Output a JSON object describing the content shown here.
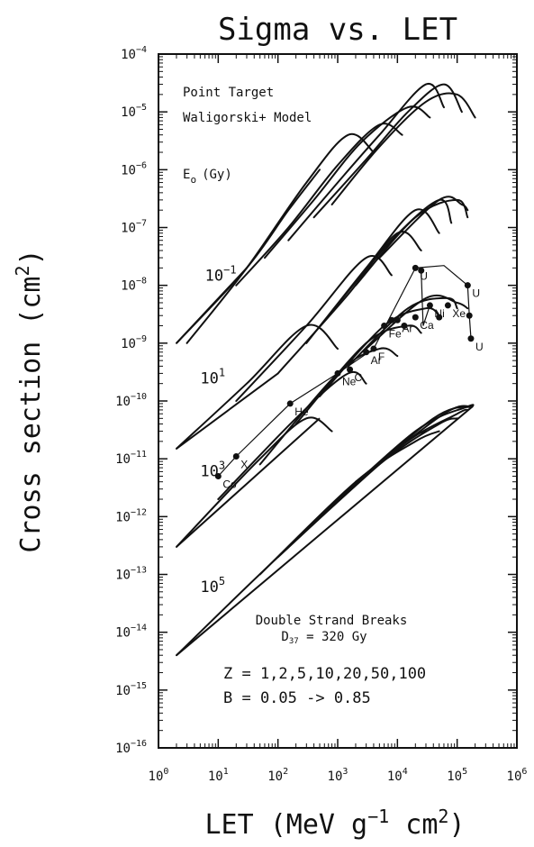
{
  "chart_data": {
    "type": "line",
    "title": "Sigma vs. LET",
    "xlabel": "LET (MeV g⁻¹ cm²)",
    "ylabel": "Cross section (cm²)",
    "x_scale": "log",
    "y_scale": "log",
    "xlim": [
      1,
      1000000
    ],
    "ylim": [
      1e-16,
      0.0001
    ],
    "x_ticks": [
      {
        "value": 1,
        "base": "10",
        "exp": "0"
      },
      {
        "value": 10,
        "base": "10",
        "exp": "1"
      },
      {
        "value": 100,
        "base": "10",
        "exp": "2"
      },
      {
        "value": 1000,
        "base": "10",
        "exp": "3"
      },
      {
        "value": 10000,
        "base": "10",
        "exp": "4"
      },
      {
        "value": 100000,
        "base": "10",
        "exp": "5"
      },
      {
        "value": 1000000,
        "base": "10",
        "exp": "6"
      }
    ],
    "y_ticks": [
      {
        "value": 0.0001,
        "base": "10",
        "exp": "−4"
      },
      {
        "value": 1e-05,
        "base": "10",
        "exp": "−5"
      },
      {
        "value": 1e-06,
        "base": "10",
        "exp": "−6"
      },
      {
        "value": 1e-07,
        "base": "10",
        "exp": "−7"
      },
      {
        "value": 1e-08,
        "base": "10",
        "exp": "−8"
      },
      {
        "value": 1e-09,
        "base": "10",
        "exp": "−9"
      },
      {
        "value": 1e-10,
        "base": "10",
        "exp": "−10"
      },
      {
        "value": 1e-11,
        "base": "10",
        "exp": "−11"
      },
      {
        "value": 1e-12,
        "base": "10",
        "exp": "−12"
      },
      {
        "value": 1e-13,
        "base": "10",
        "exp": "−13"
      },
      {
        "value": 1e-14,
        "base": "10",
        "exp": "−14"
      },
      {
        "value": 1e-15,
        "base": "10",
        "exp": "−15"
      },
      {
        "value": 1e-16,
        "base": "10",
        "exp": "−16"
      }
    ],
    "annotations": {
      "model_line1": "Point Target",
      "model_line2": "Waligorski+ Model",
      "e0_label": "E",
      "e0_sub": "o",
      "e0_unit": "(Gy)",
      "dsb_line1": "Double Strand Breaks",
      "dsb_d37_main": "D",
      "dsb_d37_sub": "37",
      "dsb_d37_rest": " = 320 Gy",
      "z_line": "Z = 1,2,5,10,20,50,100",
      "b_line": "B = 0.05 -> 0.85"
    },
    "dose_labels": [
      {
        "base": "10",
        "exp": "−1",
        "x": 6,
        "y": 1.2e-08
      },
      {
        "base": "10",
        "exp": "1",
        "x": 5,
        "y": 2e-10
      },
      {
        "base": "10",
        "exp": "3",
        "x": 5,
        "y": 5e-12
      },
      {
        "base": "10",
        "exp": "5",
        "x": 5,
        "y": 5e-14
      }
    ],
    "dose_groups": [
      {
        "E0": 0.1,
        "baseline": [
          [
            2,
            1e-09
          ],
          [
            30,
            2e-08
          ]
        ],
        "curves": [
          {
            "Z": 1,
            "points": [
              [
                2,
                1e-09
              ],
              [
                30,
                2e-08
              ],
              [
                150,
                2e-07
              ],
              [
                500,
                1e-06
              ]
            ]
          },
          {
            "Z": 2,
            "points": [
              [
                3,
                1e-09
              ],
              [
                30,
                2e-08
              ],
              [
                300,
                6e-07
              ],
              [
                1500,
                4e-06
              ],
              [
                4000,
                2e-06
              ]
            ]
          },
          {
            "Z": 5,
            "points": [
              [
                20,
                1e-08
              ],
              [
                150,
                1e-07
              ],
              [
                1000,
                1.2e-06
              ],
              [
                5000,
                6e-06
              ],
              [
                12000,
                4e-06
              ]
            ]
          },
          {
            "Z": 10,
            "points": [
              [
                60,
                3e-08
              ],
              [
                400,
                3e-07
              ],
              [
                2500,
                3e-06
              ],
              [
                15000,
                1.2e-05
              ],
              [
                35000,
                8e-06
              ]
            ]
          },
          {
            "Z": 20,
            "points": [
              [
                150,
                6e-08
              ],
              [
                1000,
                6e-07
              ],
              [
                5000,
                4e-06
              ],
              [
                30000,
                3e-05
              ],
              [
                60000,
                1.2e-05
              ]
            ]
          },
          {
            "Z": 50,
            "points": [
              [
                400,
                1.5e-07
              ],
              [
                3000,
                1.5e-06
              ],
              [
                15000,
                1e-05
              ],
              [
                60000,
                3e-05
              ],
              [
                120000,
                1e-05
              ]
            ]
          },
          {
            "Z": 100,
            "points": [
              [
                800,
                2.5e-07
              ],
              [
                5000,
                2.5e-06
              ],
              [
                30000,
                1.5e-05
              ],
              [
                100000,
                2e-05
              ],
              [
                200000,
                8e-06
              ]
            ]
          }
        ]
      },
      {
        "E0": 10,
        "baseline": [
          [
            2,
            1.5e-11
          ],
          [
            100,
            3e-10
          ]
        ],
        "curves": [
          {
            "Z": 1,
            "points": [
              [
                2,
                1.5e-11
              ],
              [
                30,
                2e-10
              ],
              [
                300,
                2e-09
              ],
              [
                1000,
                8e-10
              ]
            ]
          },
          {
            "Z": 2,
            "points": [
              [
                20,
                1e-10
              ],
              [
                300,
                2e-09
              ],
              [
                3000,
                3e-08
              ],
              [
                8000,
                1.5e-08
              ]
            ]
          },
          {
            "Z": 5,
            "points": [
              [
                100,
                3e-10
              ],
              [
                1500,
                7e-09
              ],
              [
                10000,
                8e-08
              ],
              [
                25000,
                4e-08
              ]
            ]
          },
          {
            "Z": 10,
            "points": [
              [
                300,
                1e-09
              ],
              [
                3000,
                2e-08
              ],
              [
                20000,
                2e-07
              ],
              [
                50000,
                8e-08
              ]
            ]
          },
          {
            "Z": 20,
            "points": [
              [
                700,
                3e-09
              ],
              [
                8000,
                6e-08
              ],
              [
                50000,
                3e-07
              ],
              [
                80000,
                1.2e-07
              ]
            ]
          },
          {
            "Z": 50,
            "points": [
              [
                2000,
                1e-08
              ],
              [
                20000,
                1.5e-07
              ],
              [
                100000,
                3e-07
              ],
              [
                150000,
                1.5e-07
              ]
            ]
          },
          {
            "Z": 100,
            "points": [
              [
                5000,
                3e-08
              ],
              [
                50000,
                3e-07
              ],
              [
                120000,
                2.5e-07
              ],
              [
                150000,
                2e-07
              ]
            ]
          }
        ]
      },
      {
        "E0": 1000,
        "baseline": [
          [
            2,
            3e-13
          ],
          [
            500,
            5e-11
          ]
        ],
        "curves": [
          {
            "Z": 1,
            "points": [
              [
                2,
                3e-13
              ],
              [
                50,
                1e-11
              ],
              [
                300,
                5e-11
              ],
              [
                800,
                3e-11
              ]
            ]
          },
          {
            "Z": 2,
            "points": [
              [
                10,
                2e-12
              ],
              [
                200,
                5e-11
              ],
              [
                1500,
                3e-10
              ],
              [
                3000,
                2e-10
              ]
            ]
          },
          {
            "Z": 5,
            "points": [
              [
                50,
                8e-12
              ],
              [
                1000,
                3e-10
              ],
              [
                5000,
                8e-10
              ],
              [
                10000,
                6e-10
              ]
            ]
          },
          {
            "Z": 10,
            "points": [
              [
                200,
                4e-11
              ],
              [
                3000,
                1e-09
              ],
              [
                15000,
                2e-09
              ],
              [
                25000,
                1.5e-09
              ]
            ]
          },
          {
            "Z": 20,
            "points": [
              [
                500,
                1.2e-10
              ],
              [
                6000,
                2e-09
              ],
              [
                30000,
                4e-09
              ],
              [
                50000,
                3e-09
              ]
            ]
          },
          {
            "Z": 50,
            "points": [
              [
                1500,
                4e-10
              ],
              [
                15000,
                4e-09
              ],
              [
                70000,
                6e-09
              ],
              [
                100000,
                4e-09
              ]
            ]
          },
          {
            "Z": 100,
            "points": [
              [
                3000,
                8e-10
              ],
              [
                30000,
                6e-09
              ],
              [
                100000,
                5e-09
              ],
              [
                150000,
                4e-09
              ]
            ]
          }
        ]
      },
      {
        "E0": 100000,
        "baseline": [
          [
            2,
            4e-15
          ],
          [
            180000,
            8e-11
          ]
        ],
        "curves": [
          {
            "Z": 1,
            "points": [
              [
                2,
                4e-15
              ],
              [
                100,
                2e-13
              ],
              [
                10000,
                1.5e-11
              ],
              [
                30000,
                3e-11
              ]
            ]
          },
          {
            "Z": 2,
            "points": [
              [
                50,
                1e-13
              ],
              [
                2000,
                4e-12
              ],
              [
                20000,
                2e-11
              ],
              [
                50000,
                3e-11
              ]
            ]
          },
          {
            "Z": 5,
            "points": [
              [
                100,
                2e-13
              ],
              [
                5000,
                8e-12
              ],
              [
                50000,
                4e-11
              ],
              [
                100000,
                5e-11
              ]
            ]
          },
          {
            "Z": 10,
            "points": [
              [
                200,
                4e-13
              ],
              [
                10000,
                1.5e-11
              ],
              [
                100000,
                6e-11
              ],
              [
                150000,
                7e-11
              ]
            ]
          },
          {
            "Z": 20,
            "points": [
              [
                500,
                1e-12
              ],
              [
                20000,
                3e-11
              ],
              [
                150000,
                8e-11
              ],
              [
                180000,
                8e-11
              ]
            ]
          },
          {
            "Z": 50,
            "points": [
              [
                1000,
                2e-12
              ],
              [
                40000,
                5e-11
              ],
              [
                180000,
                8e-11
              ]
            ]
          },
          {
            "Z": 100,
            "points": [
              [
                2000,
                4e-12
              ],
              [
                60000,
                6e-11
              ],
              [
                180000,
                8e-11
              ]
            ]
          }
        ]
      }
    ],
    "experimental_points": [
      {
        "label": "Co",
        "x": 10,
        "y": 5e-12
      },
      {
        "label": "X",
        "x": 20,
        "y": 1.1e-11
      },
      {
        "label": "He",
        "x": 160,
        "y": 9e-11
      },
      {
        "label": "Ne",
        "x": 1000,
        "y": 3e-10
      },
      {
        "label": "C",
        "x": 1600,
        "y": 3.5e-10
      },
      {
        "label": "Ar",
        "x": 3000,
        "y": 7e-10
      },
      {
        "label": "F",
        "x": 4000,
        "y": 8e-10
      },
      {
        "label": "Fe",
        "x": 6000,
        "y": 2e-09
      },
      {
        "label": "",
        "x": 8000,
        "y": 2.5e-09
      },
      {
        "label": "Ar",
        "x": 10000,
        "y": 2.5e-09
      },
      {
        "label": "",
        "x": 13000,
        "y": 2e-09
      },
      {
        "label": "Ca",
        "x": 20000,
        "y": 2.8e-09
      },
      {
        "label": "Ni",
        "x": 35000,
        "y": 4.5e-09
      },
      {
        "label": "",
        "x": 50000,
        "y": 2.8e-09
      },
      {
        "label": "Xe",
        "x": 70000,
        "y": 4.5e-09
      },
      {
        "label": "U",
        "x": 20000,
        "y": 2e-08
      },
      {
        "label": "",
        "x": 25000,
        "y": 1.8e-08
      },
      {
        "label": "U",
        "x": 150000,
        "y": 1e-08
      },
      {
        "label": "",
        "x": 160000,
        "y": 3e-09
      },
      {
        "label": "U",
        "x": 170000,
        "y": 1.2e-09
      }
    ],
    "experimental_connectors": [
      [
        [
          10,
          5e-12
        ],
        [
          20,
          1.1e-11
        ],
        [
          160,
          9e-11
        ],
        [
          1000,
          3e-10
        ],
        [
          4000,
          8e-10
        ],
        [
          20000,
          2e-08
        ]
      ],
      [
        [
          25000,
          1.8e-08
        ],
        [
          27000,
          2e-09
        ],
        [
          35000,
          4.5e-09
        ]
      ],
      [
        [
          20000,
          2e-08
        ],
        [
          60000,
          2.2e-08
        ],
        [
          150000,
          1e-08
        ],
        [
          160000,
          3e-09
        ],
        [
          170000,
          1.2e-09
        ]
      ]
    ]
  }
}
